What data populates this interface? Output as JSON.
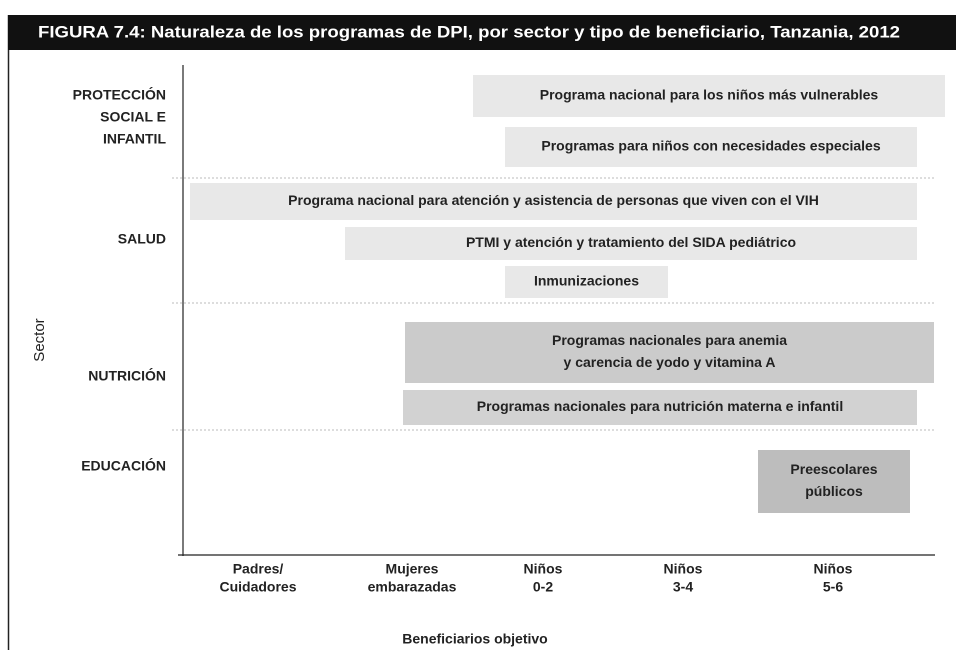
{
  "title": "FIGURA 7.4: Naturaleza de los programas de DPI, por sector y tipo de beneficiario, Tanzania, 2012",
  "y_axis_label": "Sector",
  "x_axis_label": "Beneficiarios objetivo",
  "sectors": [
    {
      "lines": [
        "PROTECCIÓN",
        "SOCIAL E",
        "INFANTIL"
      ]
    },
    {
      "lines": [
        "SALUD"
      ]
    },
    {
      "lines": [
        "NUTRICIÓN"
      ]
    },
    {
      "lines": [
        "EDUCACIÓN"
      ]
    }
  ],
  "beneficiaries": [
    {
      "lines": [
        "Padres/",
        "Cuidadores"
      ]
    },
    {
      "lines": [
        "Mujeres",
        "embarazadas"
      ]
    },
    {
      "lines": [
        "Niños",
        "0-2"
      ]
    },
    {
      "lines": [
        "Niños",
        "3-4"
      ]
    },
    {
      "lines": [
        "Niños",
        "5-6"
      ]
    }
  ],
  "programs": [
    {
      "lines": [
        "Programa nacional para los niños más vulnerables"
      ]
    },
    {
      "lines": [
        "Programas para niños con necesidades especiales"
      ]
    },
    {
      "lines": [
        "Programa nacional para atención y asistencia de personas que viven con el VIH"
      ]
    },
    {
      "lines": [
        "PTMI y atención y tratamiento del SIDA pediátrico"
      ]
    },
    {
      "lines": [
        "Inmunizaciones"
      ]
    },
    {
      "lines": [
        "Programas nacionales para anemia",
        "y carencia de yodo y vitamina A"
      ]
    },
    {
      "lines": [
        "Programas nacionales para nutrición materna e infantil"
      ]
    },
    {
      "lines": [
        "Preescolares",
        "públicos"
      ]
    }
  ]
}
